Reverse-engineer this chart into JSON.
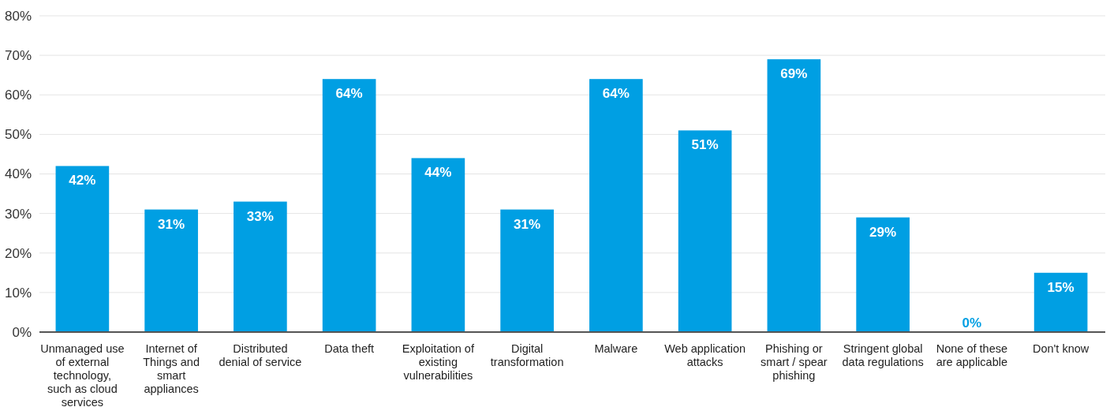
{
  "chart_data": {
    "type": "bar",
    "categories": [
      "Unmanaged use of external technology, such as cloud services",
      "Internet of Things and smart appliances",
      "Distributed denial of service",
      "Data theft",
      "Exploitation of existing vulnerabilities",
      "Digital transformation",
      "Malware",
      "Web application attacks",
      "Phishing or smart / spear phishing",
      "Stringent global data regulations",
      "None of these are applicable",
      "Don't know"
    ],
    "values": [
      42,
      31,
      33,
      64,
      44,
      31,
      64,
      51,
      69,
      29,
      0,
      15
    ],
    "value_labels": [
      "42%",
      "31%",
      "33%",
      "64%",
      "44%",
      "31%",
      "64%",
      "51%",
      "69%",
      "29%",
      "0%",
      "15%"
    ],
    "color": "#009fe3",
    "ylim": [
      0,
      80
    ],
    "yticks": [
      {
        "value": 0,
        "label": "0%"
      },
      {
        "value": 10,
        "label": "10%"
      },
      {
        "value": 20,
        "label": "20%"
      },
      {
        "value": 30,
        "label": "30%"
      },
      {
        "value": 40,
        "label": "40%"
      },
      {
        "value": 50,
        "label": "50%"
      },
      {
        "value": 60,
        "label": "60%"
      },
      {
        "value": 70,
        "label": "70%"
      },
      {
        "value": 80,
        "label": "80%"
      }
    ],
    "grid": "y"
  }
}
